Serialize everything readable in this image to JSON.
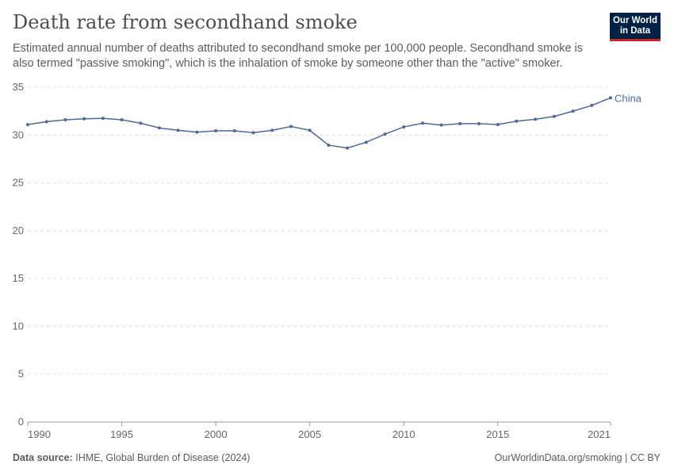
{
  "header": {
    "title": "Death rate from secondhand smoke",
    "subtitle": "Estimated annual number of deaths attributed to secondhand smoke per 100,000 people. Secondhand smoke is also termed \"passive smoking\", which is the inhalation of smoke by someone other than the \"active\" smoker.",
    "logo_text": "Our World in Data"
  },
  "footer": {
    "source_label": "Data source:",
    "source": "IHME, Global Burden of Disease (2024)",
    "credit": "OurWorldinData.org/smoking | CC BY"
  },
  "chart_data": {
    "type": "line",
    "title": "Death rate from secondhand smoke",
    "xlabel": "",
    "ylabel": "",
    "xlim": [
      1990,
      2021
    ],
    "ylim": [
      0,
      35
    ],
    "x_ticks": [
      "1990",
      "1995",
      "2000",
      "2005",
      "2010",
      "2015",
      "2021"
    ],
    "y_ticks": [
      "0",
      "5",
      "10",
      "15",
      "20",
      "25",
      "30",
      "35"
    ],
    "grid": "horizontal dashed",
    "legend": "inline label at line end",
    "x": [
      1990,
      1991,
      1992,
      1993,
      1994,
      1995,
      1996,
      1997,
      1998,
      1999,
      2000,
      2001,
      2002,
      2003,
      2004,
      2005,
      2006,
      2007,
      2008,
      2009,
      2010,
      2011,
      2012,
      2013,
      2014,
      2015,
      2016,
      2017,
      2018,
      2019,
      2020,
      2021
    ],
    "series": [
      {
        "name": "China",
        "color": "#4c6a9c",
        "values": [
          31.1,
          31.4,
          31.6,
          31.7,
          31.75,
          31.6,
          31.25,
          30.75,
          30.5,
          30.3,
          30.45,
          30.45,
          30.25,
          30.5,
          30.9,
          30.5,
          28.95,
          28.65,
          29.25,
          30.1,
          30.85,
          31.25,
          31.05,
          31.2,
          31.2,
          31.1,
          31.45,
          31.65,
          31.95,
          32.5,
          33.1,
          33.9
        ]
      }
    ]
  }
}
